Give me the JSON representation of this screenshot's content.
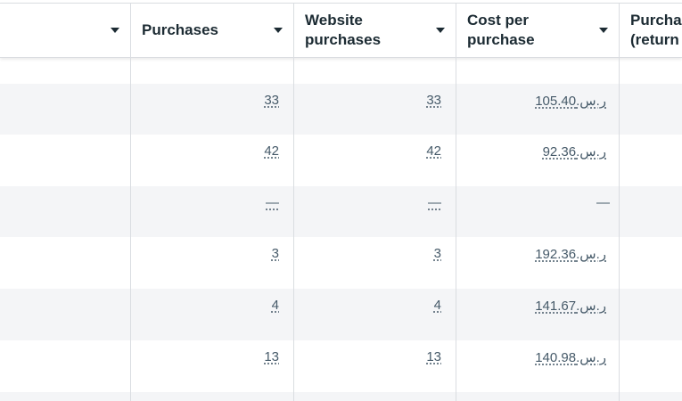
{
  "header": {
    "columns": [
      {
        "label": ""
      },
      {
        "label": "Purchases"
      },
      {
        "label": "Website purchases"
      },
      {
        "label": "Cost per purchase"
      },
      {
        "label": "Purchases (return"
      }
    ]
  },
  "currency": "ر.س.",
  "rows": [
    {
      "purchases": "33",
      "website_purchases": "33",
      "cost_per_purchase": "105.40"
    },
    {
      "purchases": "42",
      "website_purchases": "42",
      "cost_per_purchase": "92.36"
    },
    {
      "purchases": "—",
      "website_purchases": "—",
      "cost_per_purchase": "—"
    },
    {
      "purchases": "3",
      "website_purchases": "3",
      "cost_per_purchase": "192.36"
    },
    {
      "purchases": "4",
      "website_purchases": "4",
      "cost_per_purchase": "141.67"
    },
    {
      "purchases": "13",
      "website_purchases": "13",
      "cost_per_purchase": "140.98"
    }
  ]
}
